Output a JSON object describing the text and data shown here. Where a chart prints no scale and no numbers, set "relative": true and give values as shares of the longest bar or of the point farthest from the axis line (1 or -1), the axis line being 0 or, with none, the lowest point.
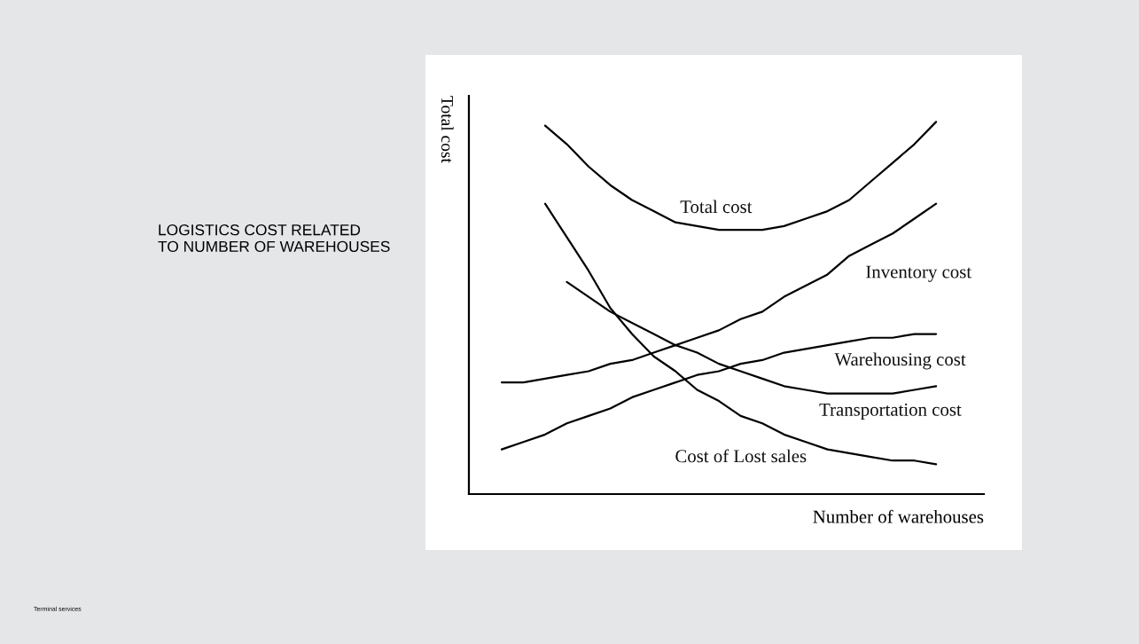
{
  "chart_data": {
    "type": "line",
    "title": "LOGISTICS COST RELATED\nTO NUMBER OF WAREHOUSES",
    "xlabel": "Number of warehouses",
    "ylabel": "Total cost",
    "relative": true,
    "grid": false,
    "legend": false,
    "marker": "none",
    "line_style": "solid",
    "annotations": [
      "Terminal services"
    ],
    "categories": [
      null,
      null,
      null,
      null,
      null,
      null,
      null,
      null,
      null,
      null,
      null,
      null,
      null,
      null,
      null,
      null,
      null,
      null,
      null,
      null,
      null
    ],
    "series": [
      {
        "name": "Total cost",
        "color": "#000000",
        "values": [
          null,
          null,
          0.99,
          0.94,
          0.88,
          0.83,
          0.79,
          0.76,
          0.73,
          0.72,
          0.71,
          0.71,
          0.71,
          0.72,
          0.74,
          0.76,
          0.79,
          0.84,
          0.89,
          0.94,
          1.0
        ]
      },
      {
        "name": "Inventory cost",
        "color": "#000000",
        "values": [
          0.3,
          0.3,
          0.31,
          0.32,
          0.33,
          0.35,
          0.36,
          0.38,
          0.4,
          0.42,
          0.44,
          0.47,
          0.49,
          0.53,
          0.56,
          0.59,
          0.64,
          0.67,
          0.7,
          0.74,
          0.78
        ]
      },
      {
        "name": "Warehousing cost",
        "color": "#000000",
        "values": [
          0.12,
          0.14,
          0.16,
          0.19,
          0.21,
          0.23,
          0.26,
          0.28,
          0.3,
          0.32,
          0.33,
          0.35,
          0.36,
          0.38,
          0.39,
          0.4,
          0.41,
          0.42,
          0.42,
          0.43,
          0.43
        ]
      },
      {
        "name": "Transportation cost",
        "color": "#000000",
        "values": [
          null,
          null,
          null,
          0.57,
          0.53,
          0.49,
          0.46,
          0.43,
          0.4,
          0.38,
          0.35,
          0.33,
          0.31,
          0.29,
          0.28,
          0.27,
          0.27,
          0.27,
          0.27,
          0.28,
          0.29
        ]
      },
      {
        "name": "Cost of Lost sales",
        "color": "#000000",
        "values": [
          null,
          null,
          0.78,
          0.69,
          0.6,
          0.5,
          0.43,
          0.37,
          0.33,
          0.28,
          0.25,
          0.21,
          0.19,
          0.16,
          0.14,
          0.12,
          0.11,
          0.1,
          0.09,
          0.09,
          0.08
        ]
      }
    ]
  }
}
